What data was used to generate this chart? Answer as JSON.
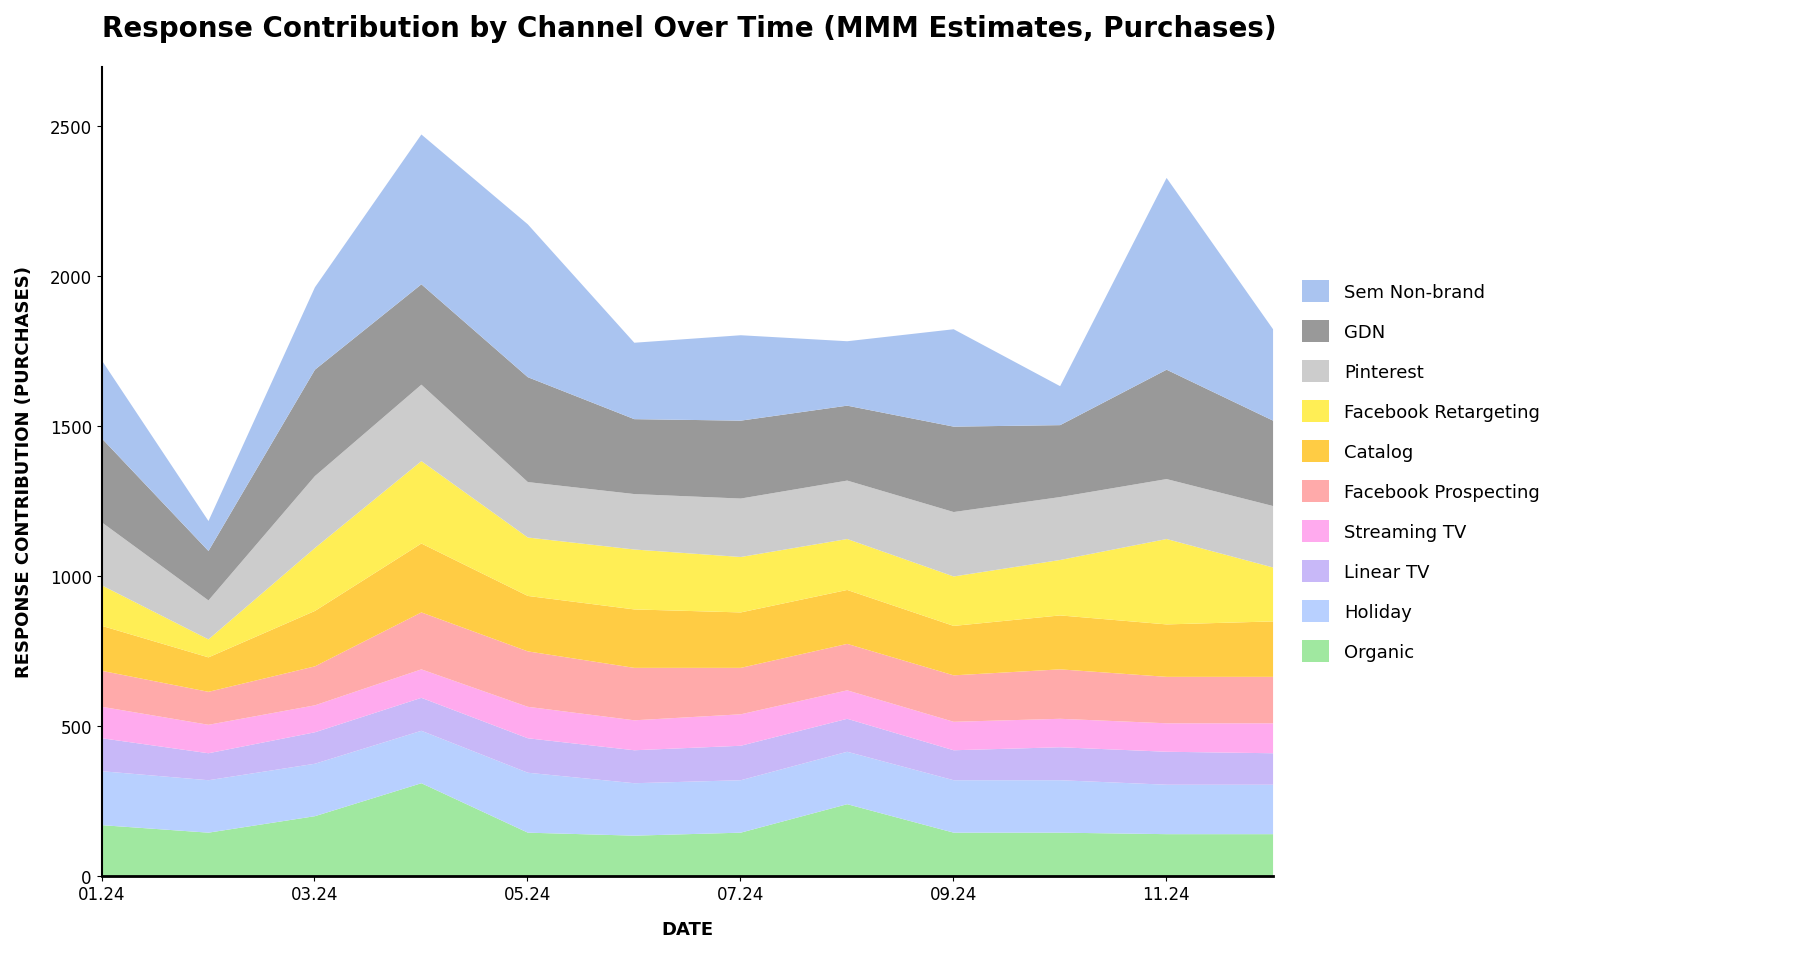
{
  "title": "Response Contribution by Channel Over Time (MMM Estimates, Purchases)",
  "xlabel": "DATE",
  "ylabel": "RESPONSE CONTRIBUTION (PURCHASES)",
  "x_labels": [
    "01.24",
    "03.24",
    "05.24",
    "07.24",
    "09.24",
    "11.24"
  ],
  "x_positions": [
    0,
    2,
    4,
    6,
    8,
    10
  ],
  "ylim": [
    0,
    2700
  ],
  "yticks": [
    0,
    500,
    1000,
    1500,
    2000,
    2500
  ],
  "channels": [
    "Organic",
    "Holiday",
    "Linear TV",
    "Streaming TV",
    "Facebook Prospecting",
    "Catalog",
    "Facebook Retargeting",
    "Pinterest",
    "GDN",
    "Sem Non-brand"
  ],
  "colors": [
    "#a0e8a0",
    "#b8d0ff",
    "#c8b8f8",
    "#ffaaee",
    "#ffaaaa",
    "#ffcc44",
    "#ffee55",
    "#cccccc",
    "#999999",
    "#aac4f0"
  ],
  "data": {
    "Organic": [
      170,
      145,
      200,
      310,
      145,
      135,
      145,
      240,
      145,
      145,
      140,
      140
    ],
    "Holiday": [
      180,
      175,
      175,
      175,
      200,
      175,
      175,
      175,
      175,
      175,
      165,
      165
    ],
    "Linear TV": [
      110,
      90,
      105,
      110,
      115,
      110,
      115,
      110,
      100,
      110,
      110,
      105
    ],
    "Streaming TV": [
      105,
      95,
      90,
      95,
      105,
      100,
      105,
      95,
      95,
      95,
      95,
      100
    ],
    "Facebook Prospecting": [
      120,
      110,
      130,
      190,
      185,
      175,
      155,
      155,
      155,
      165,
      155,
      155
    ],
    "Catalog": [
      150,
      115,
      185,
      230,
      185,
      195,
      185,
      180,
      165,
      180,
      175,
      185
    ],
    "Facebook Retargeting": [
      135,
      60,
      210,
      275,
      195,
      200,
      185,
      170,
      165,
      185,
      285,
      180
    ],
    "Pinterest": [
      210,
      130,
      240,
      255,
      185,
      185,
      195,
      195,
      215,
      210,
      200,
      205
    ],
    "GDN": [
      280,
      165,
      355,
      335,
      350,
      250,
      260,
      250,
      285,
      240,
      365,
      285
    ],
    "Sem Non-brand": [
      260,
      100,
      275,
      500,
      510,
      255,
      285,
      215,
      325,
      130,
      640,
      305
    ]
  },
  "n_points": 12,
  "background_color": "#ffffff",
  "title_fontsize": 20,
  "label_fontsize": 13,
  "tick_fontsize": 12,
  "legend_fontsize": 13
}
